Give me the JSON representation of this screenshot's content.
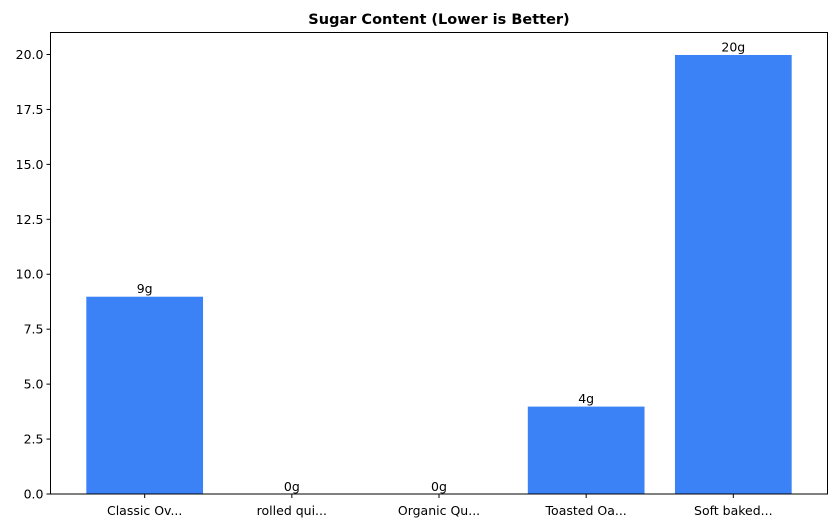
{
  "chart_data": {
    "type": "bar",
    "title": "Sugar Content (Lower is Better)",
    "xlabel": "",
    "ylabel": "",
    "categories": [
      "Classic Ov...",
      "rolled qui...",
      "Organic Qu...",
      "Toasted Oa...",
      "Soft baked..."
    ],
    "values": [
      9,
      0,
      0,
      4,
      20
    ],
    "data_labels": [
      "9g",
      "0g",
      "0g",
      "4g",
      "20g"
    ],
    "ylim": [
      0,
      21
    ],
    "yticks": [
      0,
      2.5,
      5,
      7.5,
      10,
      12.5,
      15,
      17.5,
      20
    ],
    "ytick_labels": [
      "0.0",
      "2.5",
      "5.0",
      "7.5",
      "10.0",
      "12.5",
      "15.0",
      "17.5",
      "20.0"
    ],
    "grid": false,
    "colors": {
      "bar": "#3b82f6",
      "bar_edge": "#ffffff"
    }
  }
}
